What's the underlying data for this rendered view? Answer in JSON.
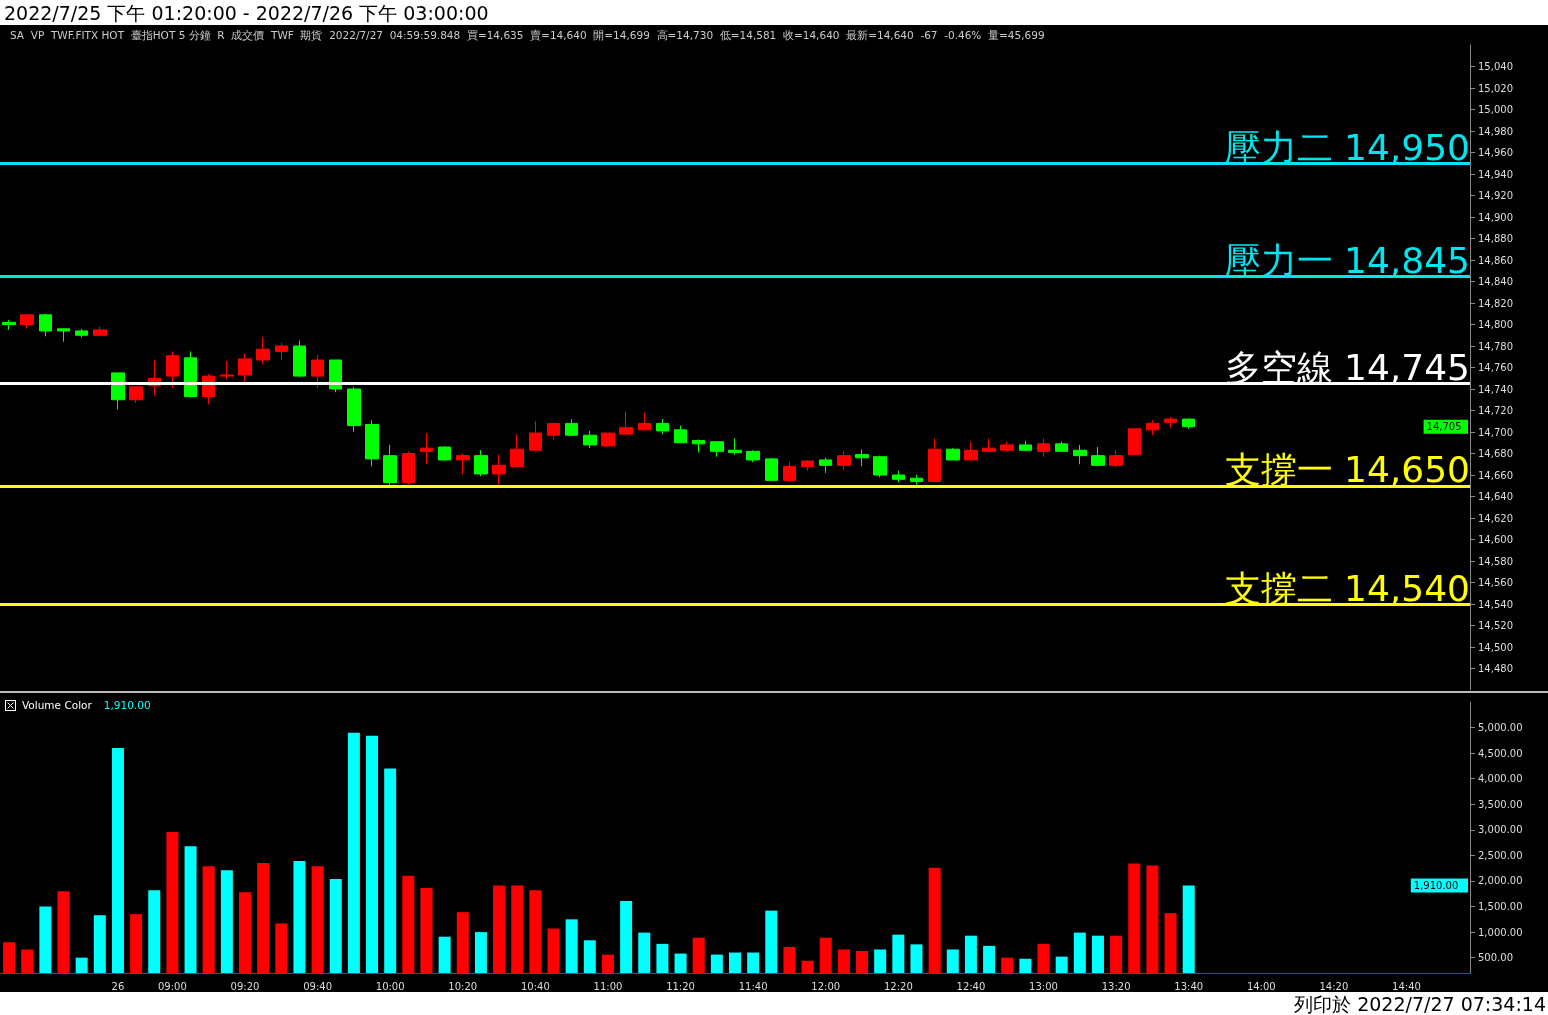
{
  "chart_data": [
    {
      "type": "candlestick",
      "title": "2022/7/25 下午 01:20:00 - 2022/7/26 下午 03:00:00",
      "subtitle": "SA  VP  TWF.FITX HOT  臺指HOT 5 分鐘  R  成交價  TWF  期貨  2022/7/27  04:59:59.848  買=14,635  賣=14,640  開=14,699  高=14,730  低=14,581  收=14,640  最新=14,640  -67  -0.46%  量=45,699",
      "categories": [
        null,
        null,
        null,
        null,
        null,
        null,
        "26",
        null,
        null,
        "09:00",
        null,
        null,
        null,
        "09:20",
        null,
        null,
        null,
        "09:40",
        null,
        null,
        null,
        "10:00",
        null,
        null,
        null,
        "10:20",
        null,
        null,
        null,
        "10:40",
        null,
        null,
        null,
        "11:00",
        null,
        null,
        null,
        "11:20",
        null,
        null,
        null,
        "11:40",
        null,
        null,
        null,
        "12:00",
        null,
        null,
        null,
        "12:20",
        null,
        null,
        null,
        "12:40",
        null,
        null,
        null,
        "13:00",
        null,
        null,
        null,
        "13:20",
        null,
        null,
        null,
        "13:40",
        null,
        null,
        null,
        "14:00",
        null,
        null,
        null,
        "14:20",
        null,
        null,
        null,
        "14:40",
        null,
        null,
        null
      ],
      "ohlc": [
        [
          14802,
          14804,
          14795,
          14800
        ],
        [
          14800,
          14809,
          14796,
          14809
        ],
        [
          14809,
          14810,
          14789,
          14794
        ],
        [
          14796,
          14796,
          14784,
          14794
        ],
        [
          14794,
          14796,
          14788,
          14790
        ],
        [
          14790,
          14798,
          14790,
          14795
        ],
        [
          14755,
          14755,
          14721,
          14730
        ],
        [
          14730,
          14742,
          14727,
          14742
        ],
        [
          14743,
          14767,
          14734,
          14750
        ],
        [
          14752,
          14775,
          14741,
          14771
        ],
        [
          14769,
          14775,
          14732,
          14733
        ],
        [
          14733,
          14754,
          14726,
          14752
        ],
        [
          14752,
          14766,
          14749,
          14753
        ],
        [
          14753,
          14773,
          14746,
          14768
        ],
        [
          14767,
          14788,
          14763,
          14777
        ],
        [
          14775,
          14783,
          14767,
          14780
        ],
        [
          14780,
          14785,
          14751,
          14752
        ],
        [
          14752,
          14772,
          14741,
          14767
        ],
        [
          14767,
          14767,
          14737,
          14740
        ],
        [
          14740,
          14742,
          14700,
          14706
        ],
        [
          14707,
          14711,
          14668,
          14675
        ],
        [
          14678,
          14688,
          14651,
          14653
        ],
        [
          14653,
          14682,
          14651,
          14680
        ],
        [
          14682,
          14699,
          14670,
          14685
        ],
        [
          14686,
          14687,
          14673,
          14674
        ],
        [
          14674,
          14680,
          14661,
          14678
        ],
        [
          14678,
          14683,
          14659,
          14661
        ],
        [
          14661,
          14679,
          14651,
          14669
        ],
        [
          14668,
          14698,
          14667,
          14684
        ],
        [
          14683,
          14710,
          14682,
          14699
        ],
        [
          14697,
          14708,
          14693,
          14708
        ],
        [
          14708,
          14712,
          14696,
          14697
        ],
        [
          14697,
          14701,
          14685,
          14688
        ],
        [
          14687,
          14699,
          14686,
          14699
        ],
        [
          14698,
          14719,
          14698,
          14704
        ],
        [
          14702,
          14718,
          14702,
          14708
        ],
        [
          14708,
          14712,
          14698,
          14701
        ],
        [
          14702,
          14706,
          14690,
          14690
        ],
        [
          14692,
          14693,
          14681,
          14689
        ],
        [
          14691,
          14691,
          14677,
          14682
        ],
        [
          14683,
          14694,
          14679,
          14681
        ],
        [
          14682,
          14683,
          14672,
          14674
        ],
        [
          14675,
          14676,
          14655,
          14655
        ],
        [
          14655,
          14672,
          14654,
          14668
        ],
        [
          14668,
          14674,
          14664,
          14673
        ],
        [
          14674,
          14676,
          14662,
          14669
        ],
        [
          14669,
          14682,
          14665,
          14678
        ],
        [
          14679,
          14684,
          14668,
          14676
        ],
        [
          14677,
          14678,
          14658,
          14660
        ],
        [
          14660,
          14664,
          14653,
          14656
        ],
        [
          14657,
          14660,
          14651,
          14654
        ],
        [
          14654,
          14694,
          14653,
          14684
        ],
        [
          14684,
          14685,
          14674,
          14674
        ],
        [
          14674,
          14691,
          14674,
          14683
        ],
        [
          14682,
          14694,
          14681,
          14685
        ],
        [
          14683,
          14691,
          14682,
          14688
        ],
        [
          14688,
          14692,
          14682,
          14683
        ],
        [
          14682,
          14694,
          14677,
          14689
        ],
        [
          14689,
          14691,
          14682,
          14682
        ],
        [
          14683,
          14688,
          14670,
          14678
        ],
        [
          14678,
          14686,
          14668,
          14669
        ],
        [
          14669,
          14683,
          14667,
          14678
        ],
        [
          14679,
          14703,
          14679,
          14703
        ],
        [
          14702,
          14711,
          14697,
          14708
        ],
        [
          14709,
          14714,
          14704,
          14712
        ],
        [
          14712,
          14712,
          14703,
          14705
        ],
        null,
        null,
        null,
        null,
        null,
        null,
        null,
        null,
        null,
        null,
        null,
        null,
        null,
        null,
        null
      ],
      "colors": [
        "#00ff00",
        "#ff0000",
        "#00ff00",
        "#00ff00",
        "#00ff00",
        "#ff0000",
        "#00ff00",
        "#ff0000",
        "#ff0000",
        "#ff0000",
        "#00ff00",
        "#ff0000",
        "#ff0000",
        "#ff0000",
        "#ff0000",
        "#ff0000",
        "#00ff00",
        "#ff0000",
        "#00ff00",
        "#00ff00",
        "#00ff00",
        "#00ff00",
        "#ff0000",
        "#ff0000",
        "#00ff00",
        "#ff0000",
        "#00ff00",
        "#ff0000",
        "#ff0000",
        "#ff0000",
        "#ff0000",
        "#00ff00",
        "#00ff00",
        "#ff0000",
        "#ff0000",
        "#ff0000",
        "#00ff00",
        "#00ff00",
        "#00ff00",
        "#00ff00",
        "#00ff00",
        "#00ff00",
        "#00ff00",
        "#ff0000",
        "#ff0000",
        "#00ff00",
        "#ff0000",
        "#00ff00",
        "#00ff00",
        "#00ff00",
        "#00ff00",
        "#ff0000",
        "#00ff00",
        "#ff0000",
        "#ff0000",
        "#ff0000",
        "#00ff00",
        "#ff0000",
        "#00ff00",
        "#00ff00",
        "#00ff00",
        "#ff0000",
        "#ff0000",
        "#ff0000",
        "#ff0000",
        "#00ff00",
        null,
        null,
        null,
        null,
        null,
        null,
        null,
        null,
        null,
        null,
        null,
        null,
        null,
        null,
        null
      ],
      "ylim": [
        14460,
        15060
      ],
      "yticks": [
        {
          "value": 14480,
          "label": "14,480"
        },
        {
          "value": 14500,
          "label": "14,500"
        },
        {
          "value": 14520,
          "label": "14,520"
        },
        {
          "value": 14540,
          "label": "14,540"
        },
        {
          "value": 14560,
          "label": "14,560"
        },
        {
          "value": 14580,
          "label": "14,580"
        },
        {
          "value": 14600,
          "label": "14,600"
        },
        {
          "value": 14620,
          "label": "14,620"
        },
        {
          "value": 14640,
          "label": "14,640"
        },
        {
          "value": 14660,
          "label": "14,660"
        },
        {
          "value": 14680,
          "label": "14,680"
        },
        {
          "value": 14700,
          "label": "14,700"
        },
        {
          "value": 14720,
          "label": "14,720"
        },
        {
          "value": 14740,
          "label": "14,740"
        },
        {
          "value": 14760,
          "label": "14,760"
        },
        {
          "value": 14780,
          "label": "14,780"
        },
        {
          "value": 14800,
          "label": "14,800"
        },
        {
          "value": 14820,
          "label": "14,820"
        },
        {
          "value": 14840,
          "label": "14,840"
        },
        {
          "value": 14860,
          "label": "14,860"
        },
        {
          "value": 14880,
          "label": "14,880"
        },
        {
          "value": 14900,
          "label": "14,900"
        },
        {
          "value": 14920,
          "label": "14,920"
        },
        {
          "value": 14940,
          "label": "14,940"
        },
        {
          "value": 14960,
          "label": "14,960"
        },
        {
          "value": 14980,
          "label": "14,980"
        },
        {
          "value": 15000,
          "label": "15,000"
        },
        {
          "value": 15020,
          "label": "15,020"
        },
        {
          "value": 15040,
          "label": "15,040"
        }
      ],
      "ref_lines": [
        {
          "axis": "y",
          "value": 14950,
          "label": "壓力二 14,950",
          "color": "#00e5ee"
        },
        {
          "axis": "y",
          "value": 14845,
          "label": "壓力一 14,845",
          "color": "#00e5ee"
        },
        {
          "axis": "y",
          "value": 14745,
          "label": "多空線 14,745",
          "color": "#ffffff"
        },
        {
          "axis": "y",
          "value": 14650,
          "label": "支撐一 14,650",
          "color": "#ffff00"
        },
        {
          "axis": "y",
          "value": 14540,
          "label": "支撐二 14,540",
          "color": "#ffff00"
        }
      ],
      "annotations": [
        "14,705"
      ],
      "tick_labels": "y"
    },
    {
      "type": "bar",
      "title": "Volume Color",
      "values": [
        800,
        660,
        1500,
        1800,
        500,
        1330,
        4600,
        1350,
        1820,
        2960,
        2680,
        2290,
        2210,
        1780,
        2350,
        1170,
        2390,
        2290,
        2040,
        4900,
        4840,
        4200,
        2100,
        1860,
        910,
        1390,
        1000,
        1910,
        1910,
        1820,
        1070,
        1250,
        840,
        560,
        1610,
        990,
        770,
        580,
        890,
        560,
        600,
        600,
        1420,
        710,
        440,
        890,
        660,
        630,
        660,
        950,
        760,
        2260,
        660,
        930,
        730,
        500,
        480,
        770,
        520,
        990,
        930,
        930,
        2340,
        2300,
        1370,
        1910,
        null,
        null,
        null,
        null,
        null,
        null,
        null,
        null,
        null,
        null,
        null,
        null,
        null,
        null,
        null
      ],
      "colors": [
        "#ff0000",
        "#ff0000",
        "#00ffff",
        "#ff0000",
        "#00ffff",
        "#00ffff",
        "#00ffff",
        "#ff0000",
        "#00ffff",
        "#ff0000",
        "#00ffff",
        "#ff0000",
        "#00ffff",
        "#ff0000",
        "#ff0000",
        "#ff0000",
        "#00ffff",
        "#ff0000",
        "#00ffff",
        "#00ffff",
        "#00ffff",
        "#00ffff",
        "#ff0000",
        "#ff0000",
        "#00ffff",
        "#ff0000",
        "#00ffff",
        "#ff0000",
        "#ff0000",
        "#ff0000",
        "#ff0000",
        "#00ffff",
        "#00ffff",
        "#ff0000",
        "#00ffff",
        "#00ffff",
        "#00ffff",
        "#00ffff",
        "#ff0000",
        "#00ffff",
        "#00ffff",
        "#00ffff",
        "#00ffff",
        "#ff0000",
        "#ff0000",
        "#ff0000",
        "#ff0000",
        "#ff0000",
        "#00ffff",
        "#00ffff",
        "#00ffff",
        "#ff0000",
        "#00ffff",
        "#00ffff",
        "#00ffff",
        "#ff0000",
        "#00ffff",
        "#ff0000",
        "#00ffff",
        "#00ffff",
        "#00ffff",
        "#ff0000",
        "#ff0000",
        "#ff0000",
        "#ff0000",
        "#00ffff",
        null,
        null,
        null,
        null,
        null,
        null,
        null,
        null,
        null,
        null,
        null,
        null,
        null,
        null,
        null
      ],
      "ylim": [
        200,
        5500
      ],
      "yticks": [
        {
          "value": 500,
          "label": "500.00"
        },
        {
          "value": 1000,
          "label": "1,000.00"
        },
        {
          "value": 1500,
          "label": "1,500.00"
        },
        {
          "value": 2000,
          "label": "2,000.00"
        },
        {
          "value": 2500,
          "label": "2,500.00"
        },
        {
          "value": 3000,
          "label": "3,000.00"
        },
        {
          "value": 3500,
          "label": "3,500.00"
        },
        {
          "value": 4000,
          "label": "4,000.00"
        },
        {
          "value": 4500,
          "label": "4,500.00"
        },
        {
          "value": 5000,
          "label": "5,000.00"
        }
      ],
      "annotations": [
        "1,910.00",
        "1,910.00",
        "列印於 2022/7/27 07:34:14"
      ]
    }
  ]
}
